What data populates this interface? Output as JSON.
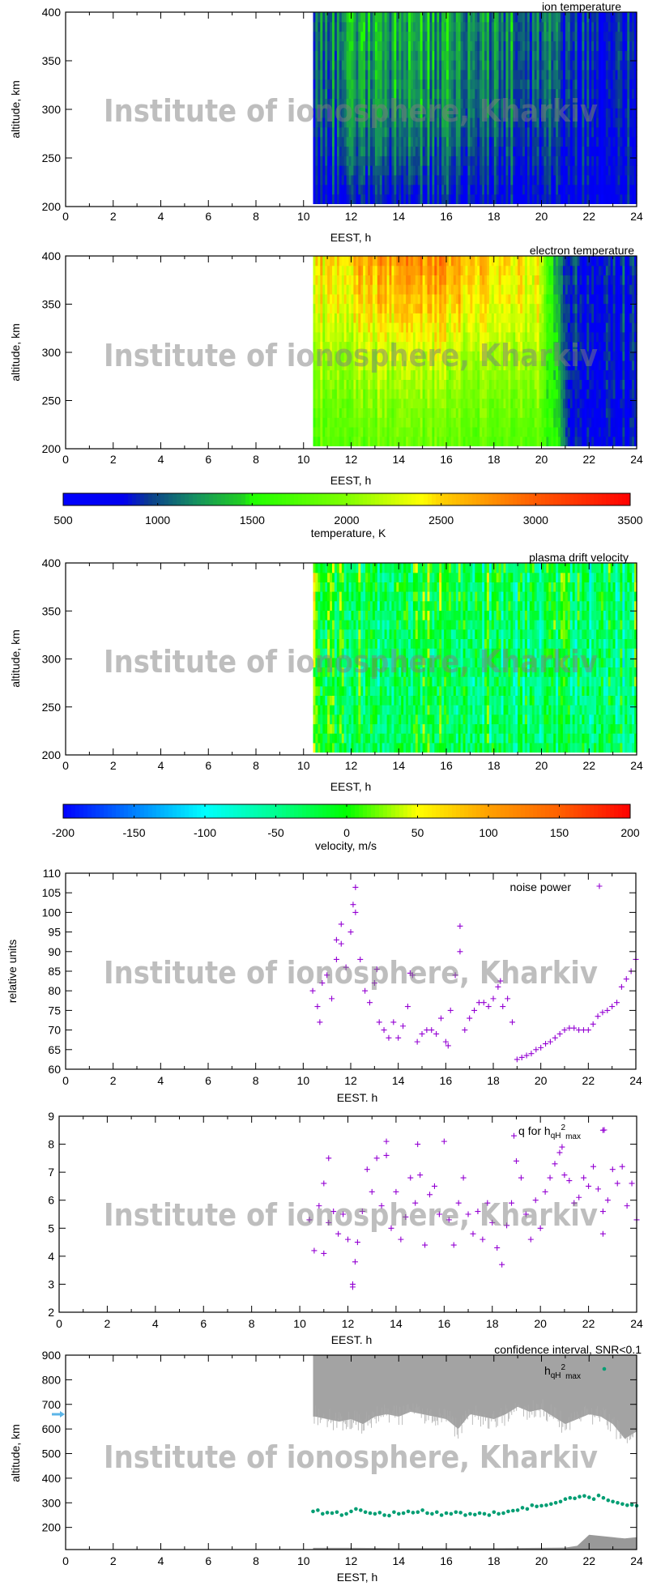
{
  "watermark": "Institute of ionosphere, Kharkiv",
  "colorbars": [
    {
      "label": "temperature, K",
      "range": [
        500,
        3500
      ],
      "ticks": [
        "500",
        "1000",
        "1500",
        "2000",
        "2500",
        "3000",
        "3500"
      ],
      "stops": [
        [
          500,
          "#0000ff"
        ],
        [
          820,
          "#0000f0"
        ],
        [
          950,
          "#0a3a90"
        ],
        [
          1200,
          "#159060"
        ],
        [
          1450,
          "#20d020"
        ],
        [
          1500,
          "#20ff00"
        ],
        [
          2000,
          "#80ff00"
        ],
        [
          2400,
          "#ffff00"
        ],
        [
          2500,
          "#ffd000"
        ],
        [
          3000,
          "#ff5a00"
        ],
        [
          3500,
          "#ff0000"
        ]
      ]
    },
    {
      "label": "velocity, m/s",
      "range": [
        -200,
        200
      ],
      "ticks": [
        "-200",
        "-150",
        "-100",
        "-50",
        "0",
        "50",
        "100",
        "150",
        "200"
      ],
      "stops": [
        [
          -200,
          "#0000ff"
        ],
        [
          -150,
          "#0080ff"
        ],
        [
          -100,
          "#00ffff"
        ],
        [
          -50,
          "#00ff90"
        ],
        [
          0,
          "#00ff00"
        ],
        [
          50,
          "#ffff00"
        ],
        [
          100,
          "#ffa000"
        ],
        [
          150,
          "#ff6000"
        ],
        [
          200,
          "#ff0000"
        ]
      ]
    }
  ],
  "chart_data": [
    {
      "type": "heatmap",
      "title": "ion temperature",
      "xlabel": "EEST, h",
      "ylabel": "altitude, km",
      "xlim": [
        0,
        24
      ],
      "ylim": [
        200,
        400
      ],
      "xticks": [
        "0",
        "2",
        "4",
        "6",
        "8",
        "10",
        "12",
        "14",
        "16",
        "18",
        "20",
        "22",
        "24"
      ],
      "yticks": [
        "200",
        "250",
        "300",
        "350",
        "400"
      ],
      "data_range_hours": [
        10.4,
        24
      ],
      "colorbar": 0,
      "grid": {
        "hours": [
          10.5,
          12,
          14,
          16,
          18,
          20,
          22,
          24
        ],
        "altitudes": [
          200,
          250,
          300,
          350,
          400
        ],
        "values": [
          [
            820,
            830,
            840,
            830,
            820,
            800,
            760,
            750
          ],
          [
            950,
            1050,
            1060,
            1000,
            960,
            900,
            790,
            770
          ],
          [
            1050,
            1200,
            1250,
            1150,
            1100,
            1000,
            820,
            790
          ],
          [
            1100,
            1250,
            1300,
            1200,
            1150,
            1050,
            840,
            800
          ],
          [
            1150,
            1300,
            1350,
            1250,
            1200,
            1100,
            850,
            800
          ]
        ]
      }
    },
    {
      "type": "heatmap",
      "title": "electron temperature",
      "xlabel": "EEST, h",
      "ylabel": "altitude, km",
      "xlim": [
        0,
        24
      ],
      "ylim": [
        200,
        400
      ],
      "xticks": [
        "0",
        "2",
        "4",
        "6",
        "8",
        "10",
        "12",
        "14",
        "16",
        "18",
        "20",
        "22",
        "24"
      ],
      "yticks": [
        "200",
        "250",
        "300",
        "350",
        "400"
      ],
      "data_range_hours": [
        10.4,
        24
      ],
      "colorbar": 0,
      "grid": {
        "hours": [
          10.5,
          12,
          14,
          16,
          18,
          20,
          20.6,
          21.2,
          22,
          24
        ],
        "altitudes": [
          200,
          250,
          300,
          350,
          400
        ],
        "values": [
          [
            1750,
            1800,
            1850,
            1850,
            1800,
            1750,
            1500,
            850,
            820,
            800
          ],
          [
            1900,
            1950,
            2000,
            2000,
            1950,
            1900,
            1400,
            850,
            820,
            800
          ],
          [
            2100,
            2150,
            2250,
            2250,
            2150,
            2100,
            1300,
            870,
            840,
            820
          ],
          [
            2350,
            2400,
            2550,
            2550,
            2400,
            2250,
            1200,
            880,
            850,
            830
          ],
          [
            2450,
            2550,
            2750,
            2800,
            2550,
            2350,
            1100,
            900,
            860,
            840
          ]
        ]
      }
    },
    {
      "type": "heatmap",
      "title": "plasma drift velocity",
      "xlabel": "EEST, h",
      "ylabel": "altitude, km",
      "xlim": [
        0,
        24
      ],
      "ylim": [
        200,
        400
      ],
      "xticks": [
        "0",
        "2",
        "4",
        "6",
        "8",
        "10",
        "12",
        "14",
        "16",
        "18",
        "20",
        "22",
        "24"
      ],
      "yticks": [
        "200",
        "250",
        "300",
        "350",
        "400"
      ],
      "data_range_hours": [
        10.4,
        24
      ],
      "colorbar": 1,
      "grid": {
        "hours": [
          10.5,
          12,
          14,
          16,
          18,
          20,
          22,
          24
        ],
        "altitudes": [
          200,
          300,
          400
        ],
        "values": [
          [
            0,
            -10,
            -20,
            -20,
            -30,
            -30,
            -40,
            -40
          ],
          [
            -10,
            -20,
            -30,
            -30,
            -35,
            -40,
            -45,
            -40
          ],
          [
            10,
            0,
            -10,
            -10,
            -20,
            -30,
            -30,
            -30
          ]
        ]
      }
    },
    {
      "type": "scatter",
      "xlabel": "EEST. h",
      "ylabel": "relative units",
      "xlim": [
        0,
        24
      ],
      "ylim": [
        60,
        110
      ],
      "xticks": [
        "0",
        "2",
        "4",
        "6",
        "8",
        "10",
        "12",
        "14",
        "16",
        "18",
        "20",
        "22",
        "24"
      ],
      "yticks": [
        "60",
        "65",
        "70",
        "75",
        "80",
        "85",
        "90",
        "95",
        "100",
        "105",
        "110"
      ],
      "legend": {
        "text": "noise power",
        "position": "top-right"
      },
      "color": "#9400d3",
      "x_start": 10.4,
      "x_step": 0.2,
      "values": [
        80,
        76,
        82,
        84,
        78,
        88,
        92,
        86,
        95,
        100,
        88,
        80,
        77,
        82,
        72,
        70,
        68,
        72,
        68,
        71,
        76,
        84,
        67,
        69,
        70,
        70,
        69,
        73,
        67,
        75,
        84,
        90,
        70,
        73,
        75,
        77,
        77,
        76,
        78,
        81,
        76,
        78,
        72,
        62.5,
        63,
        63.5,
        64,
        65,
        65.5,
        66.5,
        67,
        68,
        69,
        70,
        70.5,
        70.5,
        70,
        70,
        70,
        71.5,
        73.5,
        74.5,
        75,
        76,
        77,
        81,
        83,
        85,
        88
      ],
      "extra_points": [
        [
          12.2,
          106.4
        ],
        [
          12.1,
          102
        ],
        [
          11.6,
          97
        ],
        [
          16.6,
          96.5
        ],
        [
          11.4,
          93
        ],
        [
          10.7,
          72
        ],
        [
          16.1,
          66
        ],
        [
          13.1,
          85.5
        ],
        [
          14.5,
          84.5
        ],
        [
          18.3,
          82.5
        ]
      ]
    },
    {
      "type": "scatter",
      "xlabel": "EEST. h",
      "ylabel": "",
      "xlim": [
        0,
        24
      ],
      "ylim": [
        2,
        9
      ],
      "xticks": [
        "0",
        "2",
        "4",
        "6",
        "8",
        "10",
        "12",
        "14",
        "16",
        "18",
        "20",
        "22",
        "24"
      ],
      "yticks": [
        "2",
        "3",
        "4",
        "5",
        "6",
        "7",
        "8",
        "9"
      ],
      "legend": {
        "text": "q for h",
        "sub": "qH",
        "sup": "2",
        "sub2": "max",
        "position": "top-right"
      },
      "color": "#9400d3",
      "x_start": 10.4,
      "x_step": 0.2,
      "values": [
        5.3,
        4.2,
        5.8,
        6.6,
        5.2,
        5.6,
        4.8,
        5.5,
        4.6,
        3.0,
        4.5,
        5.6,
        7.1,
        6.3,
        7.5,
        5.8,
        7.6,
        5.0,
        6.3,
        4.6,
        5.4,
        6.8,
        5.9,
        6.9,
        4.4,
        6.2,
        6.5,
        5.5,
        8.1,
        5.3,
        4.4,
        5.9,
        6.8,
        5.5,
        4.8,
        5.6,
        4.6,
        5.9,
        5.2,
        4.3,
        3.7,
        5.1,
        5.9,
        7.4,
        6.8,
        5.5,
        4.6,
        6.0,
        5.0,
        6.3,
        6.8,
        7.3,
        7.7,
        6.9,
        6.7,
        5.9,
        6.1,
        6.8,
        6.5,
        7.2,
        6.4,
        5.6,
        6.0,
        7.1,
        6.6,
        7.2,
        5.8,
        6.6,
        5.3
      ],
      "extra_points": [
        [
          18.9,
          8.3
        ],
        [
          13.6,
          8.1
        ],
        [
          14.9,
          8.0
        ],
        [
          12.2,
          2.9
        ],
        [
          11.2,
          7.5
        ],
        [
          22.6,
          8.5
        ],
        [
          22.6,
          4.8
        ],
        [
          12.3,
          3.8
        ],
        [
          20.9,
          7.9
        ],
        [
          11.0,
          4.1
        ]
      ]
    },
    {
      "type": "scatter",
      "title": "confidence interval, SNR<0.1",
      "xlabel": "EEST, h",
      "ylabel": "altitude, km",
      "xlim": [
        0,
        24
      ],
      "ylim": [
        110,
        900
      ],
      "xticks": [
        "0",
        "2",
        "4",
        "6",
        "8",
        "10",
        "12",
        "14",
        "16",
        "18",
        "20",
        "22",
        "24"
      ],
      "yticks": [
        "200",
        "300",
        "400",
        "500",
        "600",
        "700",
        "800",
        "900"
      ],
      "legend": {
        "text": "h",
        "sub": "qH",
        "sup": "2",
        "sub2": "max",
        "position": "top-right"
      },
      "color": "#009e73",
      "band_color": "#999999",
      "x_start": 10.4,
      "x_step": 0.2,
      "values": [
        265,
        270,
        255,
        260,
        258,
        262,
        250,
        255,
        265,
        275,
        270,
        262,
        258,
        255,
        260,
        250,
        248,
        262,
        255,
        258,
        265,
        260,
        262,
        270,
        258,
        255,
        262,
        250,
        258,
        255,
        262,
        260,
        250,
        255,
        252,
        258,
        255,
        250,
        262,
        255,
        258,
        265,
        268,
        270,
        280,
        275,
        290,
        285,
        288,
        290,
        295,
        300,
        305,
        315,
        320,
        318,
        325,
        328,
        322,
        315,
        330,
        320,
        310,
        305,
        300,
        295,
        290,
        292,
        288
      ],
      "confidence_upper": {
        "hours": [
          10.4,
          10.5,
          11,
          11.5,
          12,
          12.5,
          13,
          13.5,
          14,
          14.5,
          15,
          15.5,
          16,
          16.5,
          17,
          17.5,
          18,
          18.5,
          19,
          19.5,
          20,
          20.5,
          21,
          21.5,
          22,
          22.5,
          23,
          23.5,
          24
        ],
        "lower_edge": [
          650,
          650,
          640,
          630,
          640,
          620,
          650,
          660,
          650,
          670,
          660,
          650,
          640,
          600,
          660,
          650,
          640,
          660,
          690,
          670,
          680,
          650,
          620,
          640,
          660,
          650,
          620,
          560,
          590
        ],
        "upper_edge": 900
      },
      "confidence_lower": {
        "hours": [
          10.4,
          12,
          14,
          16,
          18,
          20,
          21,
          21.5,
          22,
          22.5,
          23,
          23.5,
          24
        ],
        "upper_edge": [
          117,
          117,
          116,
          116,
          116,
          117,
          118,
          125,
          170,
          165,
          160,
          155,
          160
        ],
        "lower_edge": 110
      }
    }
  ]
}
